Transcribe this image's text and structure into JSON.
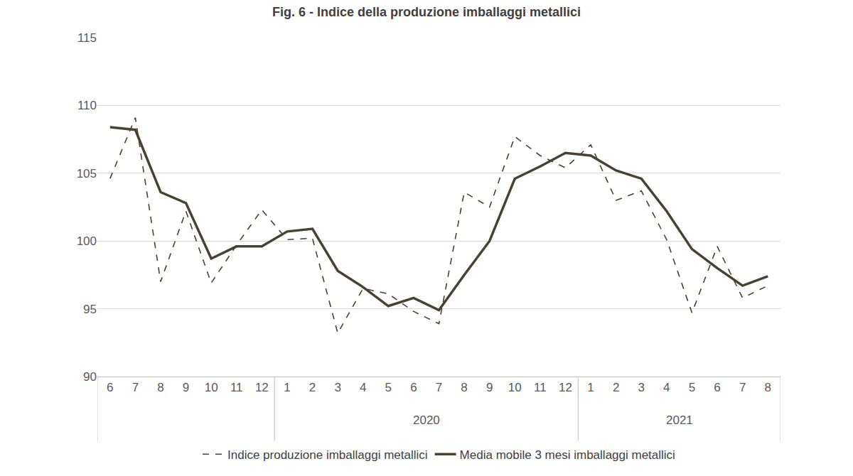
{
  "chart_data": {
    "type": "line",
    "title": "Fig. 6 - Indice della produzione imballaggi metallici",
    "categories": [
      "6",
      "7",
      "8",
      "9",
      "10",
      "11",
      "12",
      "1",
      "2",
      "3",
      "4",
      "5",
      "6",
      "7",
      "8",
      "9",
      "10",
      "11",
      "12",
      "1",
      "2",
      "3",
      "4",
      "5",
      "6",
      "7",
      "8"
    ],
    "x_groups": [
      null,
      null,
      null,
      null,
      null,
      null,
      null,
      "2020",
      "2020",
      "2020",
      "2020",
      "2020",
      "2020",
      "2020",
      "2020",
      "2020",
      "2020",
      "2020",
      "2020",
      "2021",
      "2021",
      "2021",
      "2021",
      "2021",
      "2021",
      "2021",
      "2021"
    ],
    "series": [
      {
        "name": "Indice produzione imballaggi metallici",
        "color": "#4a4230",
        "line_style": "dashed",
        "values": [
          104.6,
          109.1,
          97.0,
          102.2,
          96.9,
          99.7,
          102.3,
          100.1,
          100.2,
          93.2,
          96.5,
          96.1,
          94.8,
          93.9,
          103.6,
          102.5,
          107.7,
          106.3,
          105.4,
          107.1,
          103.0,
          103.7,
          100.1,
          94.7,
          99.6,
          95.8,
          96.7
        ]
      },
      {
        "name": "Media mobile 3 mesi imballaggi metallici",
        "color": "#4a4230",
        "line_style": "solid",
        "values": [
          108.4,
          108.2,
          103.6,
          102.8,
          98.7,
          99.6,
          99.6,
          100.7,
          100.9,
          97.8,
          96.6,
          95.2,
          95.8,
          94.9,
          97.5,
          100.0,
          104.6,
          105.5,
          106.5,
          106.3,
          105.2,
          104.6,
          102.2,
          99.4,
          98.0,
          96.7,
          97.4
        ]
      }
    ],
    "ylim": [
      90,
      115
    ],
    "yticks": [
      90,
      95,
      100,
      105,
      110,
      115
    ],
    "grid": true,
    "legend": "bottom"
  }
}
